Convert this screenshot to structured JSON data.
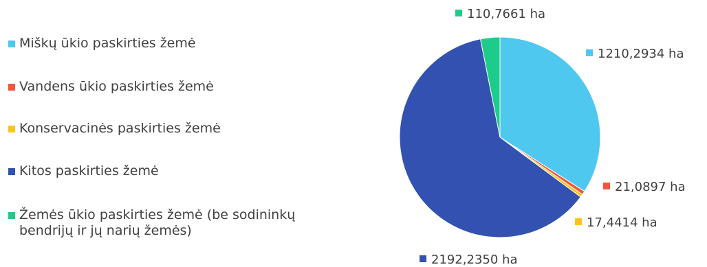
{
  "chart_data": {
    "type": "pie",
    "title": "",
    "unit": "ha",
    "legend_position": "left",
    "series": [
      {
        "name": "",
        "slices": [
          {
            "label": "Miškų ūkio paskirties žemė",
            "value": 1210.2934,
            "data_label": "1210,2934 ha",
            "color": "#4fc8f0"
          },
          {
            "label": "Vandens ūkio paskirties žemė",
            "value": 21.0897,
            "data_label": "21,0897 ha",
            "color": "#f0573b"
          },
          {
            "label": "Konservacinės paskirties žemė",
            "value": 17.4414,
            "data_label": "17,4414 ha",
            "color": "#ffc31c"
          },
          {
            "label": "Kitos paskirties žemė",
            "value": 2192.235,
            "data_label": "2192,2350 ha",
            "color": "#3351b0"
          },
          {
            "label": "Žemės ūkio paskirties žemė (be sodininkų\nbendrijų ir jų narių žemės)",
            "value": 110.7661,
            "data_label": "110,7661 ha",
            "color": "#1ecc8a"
          }
        ]
      }
    ]
  }
}
